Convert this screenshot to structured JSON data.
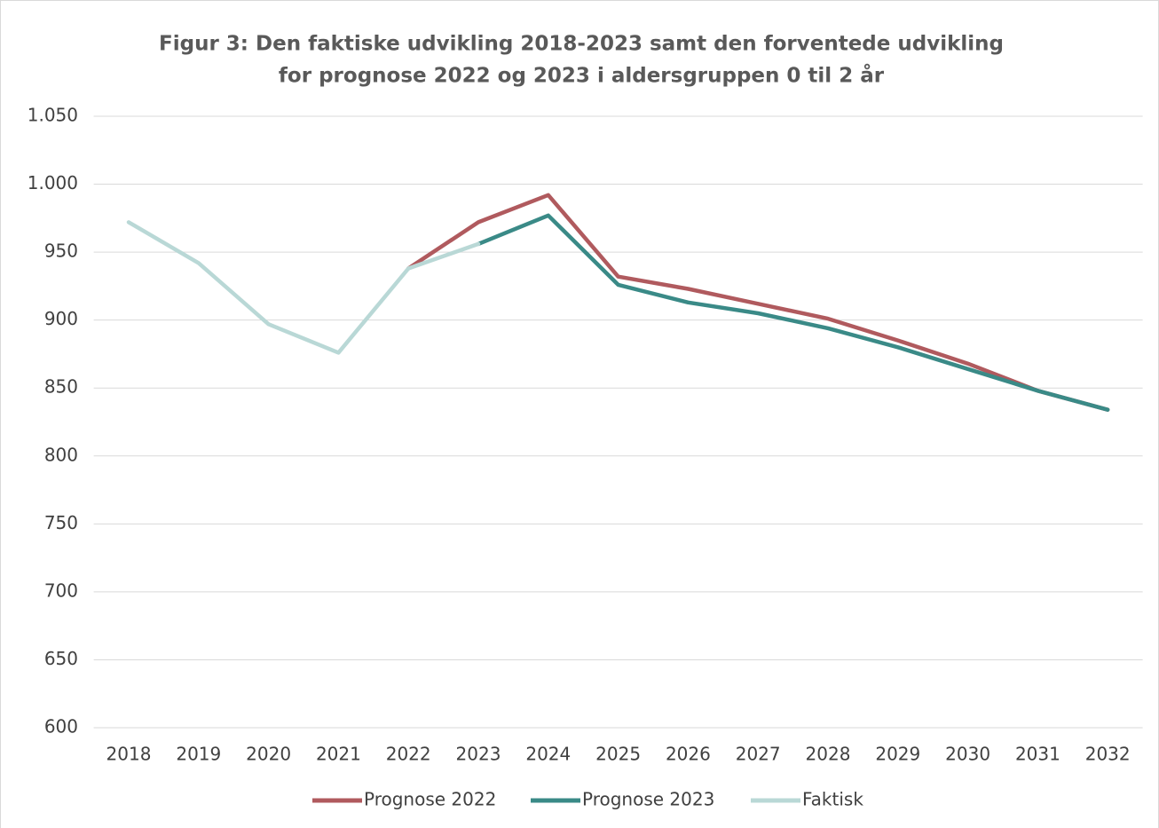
{
  "chart_data": {
    "type": "line",
    "title": "Figur 3: Den faktiske udvikling 2018-2023 samt den forventede udvikling for prognose 2022 og 2023 i aldersgruppen 0 til 2 år",
    "categories": [
      "2018",
      "2019",
      "2020",
      "2021",
      "2022",
      "2023",
      "2024",
      "2025",
      "2026",
      "2027",
      "2028",
      "2029",
      "2030",
      "2031",
      "2032"
    ],
    "series": [
      {
        "name": "Prognose 2022",
        "color": "#b05a5e",
        "values": [
          null,
          null,
          null,
          null,
          938,
          972,
          992,
          932,
          923,
          912,
          901,
          885,
          868,
          848,
          834
        ]
      },
      {
        "name": "Prognose 2023",
        "color": "#3a8a87",
        "values": [
          null,
          null,
          null,
          null,
          null,
          956,
          977,
          926,
          913,
          905,
          894,
          880,
          864,
          848,
          834
        ]
      },
      {
        "name": "Faktisk",
        "color": "#b9d8d6",
        "values": [
          972,
          942,
          897,
          876,
          938,
          956,
          null,
          null,
          null,
          null,
          null,
          null,
          null,
          null,
          null
        ]
      }
    ],
    "ylim": [
      600,
      1050
    ],
    "yticks": [
      600,
      650,
      700,
      750,
      800,
      850,
      900,
      950,
      {
        "value": 1000,
        "label": "1.000"
      },
      {
        "value": 1050,
        "label": "1.050"
      }
    ],
    "grid": true,
    "legend": "bottom"
  }
}
